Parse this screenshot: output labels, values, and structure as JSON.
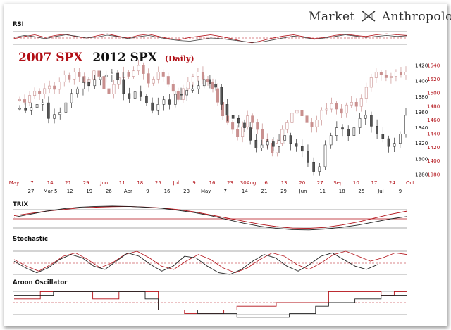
{
  "brand": {
    "word1": "Market",
    "word2": "Anthropology"
  },
  "title": {
    "line1": "2007 SPX",
    "line2": "2012 SPX",
    "suffix": "(Daily)"
  },
  "panels": {
    "rsi": "RSI",
    "trix": "TRIX",
    "stochastic": "Stochastic",
    "aroon": "Aroon Oscillator"
  },
  "colors": {
    "series_2007": "#b20f16",
    "series_2012": "#111111",
    "candle_2007": "#c9908f",
    "candle_2012_down": "#555555"
  },
  "chart_data": {
    "type": "line",
    "title": "2007 SPX  2012 SPX (Daily)",
    "axes": {
      "x_top_labels_2007": [
        "May",
        "7",
        "14",
        "21",
        "29",
        "Jun",
        "11",
        "18",
        "25",
        "Jul",
        "9",
        "16",
        "23",
        "30Aug",
        "6",
        "13",
        "20",
        "27",
        "Sep",
        "10",
        "17",
        "24",
        "Oct"
      ],
      "x_bottom_labels_2012": [
        "27",
        "Mar 5",
        "12",
        "19",
        "26",
        "Apr",
        "9",
        "16",
        "23",
        "May",
        "7",
        "14",
        "21",
        "29",
        "Jun",
        "11",
        "18",
        "25",
        "Jul",
        "9"
      ],
      "y_right_2012": [
        1280,
        1300,
        1320,
        1340,
        1360,
        1380,
        1400,
        1420
      ],
      "y_right_2007": [
        1380,
        1400,
        1420,
        1440,
        1460,
        1480,
        1500,
        1520,
        1540
      ],
      "ylim_2012": [
        1270,
        1425
      ],
      "ylim_2007": [
        1370,
        1545
      ]
    },
    "grid": false,
    "series": [
      {
        "name": "2007 SPX",
        "values": [
          1490,
          1486,
          1496,
          1502,
          1498,
          1506,
          1510,
          1505,
          1516,
          1526,
          1520,
          1530,
          1524,
          1514,
          1520,
          1532,
          1524,
          1506,
          1498,
          1512,
          1522,
          1530,
          1524,
          1532,
          1540,
          1528,
          1514,
          1520,
          1530,
          1524,
          1512,
          1502,
          1490,
          1506,
          1516,
          1524,
          1530,
          1520,
          1516,
          1506,
          1486,
          1466,
          1456,
          1446,
          1436,
          1450,
          1466,
          1456,
          1446,
          1432,
          1426,
          1412,
          1426,
          1446,
          1456,
          1470,
          1474,
          1466,
          1456,
          1450,
          1460,
          1474,
          1476,
          1484,
          1476,
          1470,
          1482,
          1486,
          1480,
          1492,
          1508,
          1522,
          1530,
          1526,
          1522,
          1524,
          1530,
          1526,
          1530
        ]
      },
      {
        "name": "2012 SPX",
        "values": [
          1365,
          1362,
          1366,
          1370,
          1372,
          1352,
          1357,
          1360,
          1372,
          1384,
          1390,
          1398,
          1394,
          1402,
          1405,
          1408,
          1410,
          1402,
          1384,
          1378,
          1386,
          1380,
          1372,
          1362,
          1370,
          1376,
          1370,
          1383,
          1382,
          1388,
          1390,
          1394,
          1402,
          1396,
          1392,
          1370,
          1356,
          1352,
          1346,
          1340,
          1324,
          1314,
          1318,
          1322,
          1316,
          1324,
          1330,
          1320,
          1316,
          1310,
          1296,
          1284,
          1290,
          1318,
          1330,
          1340,
          1338,
          1330,
          1340,
          1352,
          1356,
          1342,
          1332,
          1326,
          1316,
          1320,
          1332,
          1356
        ]
      }
    ],
    "indicators": {
      "rsi": {
        "series": [
          {
            "name": "2007 SPX",
            "values": [
              48,
              55,
              60,
              52,
              58,
              62,
              54,
              50,
              57,
              63,
              56,
              50,
              58,
              62,
              55,
              48,
              45,
              52,
              56,
              60,
              55,
              48,
              40,
              35,
              42,
              50,
              56,
              60,
              54,
              48,
              52,
              58,
              62,
              58,
              55,
              60,
              63,
              60,
              58
            ]
          },
          {
            "name": "2012 SPX",
            "values": [
              52,
              58,
              54,
              48,
              55,
              60,
              56,
              50,
              53,
              59,
              55,
              48,
              54,
              58,
              52,
              46,
              42,
              40,
              45,
              50,
              48,
              44,
              40,
              36,
              38,
              44,
              50,
              56,
              52,
              46,
              50,
              55,
              60,
              56,
              52,
              55,
              58,
              55,
              57
            ]
          }
        ]
      },
      "trix": {
        "series": [
          {
            "name": "2007 SPX",
            "values": [
              0.2,
              0.35,
              0.5,
              0.6,
              0.7,
              0.75,
              0.78,
              0.8,
              0.76,
              0.7,
              0.6,
              0.45,
              0.25,
              0.05,
              -0.15,
              -0.35,
              -0.5,
              -0.6,
              -0.62,
              -0.55,
              -0.4,
              -0.2,
              0.05,
              0.3,
              0.5
            ]
          },
          {
            "name": "2012 SPX",
            "values": [
              0.1,
              0.3,
              0.5,
              0.65,
              0.75,
              0.8,
              0.82,
              0.8,
              0.75,
              0.68,
              0.55,
              0.4,
              0.2,
              -0.05,
              -0.28,
              -0.48,
              -0.62,
              -0.7,
              -0.72,
              -0.66,
              -0.55,
              -0.4,
              -0.2,
              0.0,
              0.15
            ]
          }
        ]
      },
      "stochastic": {
        "series": [
          {
            "name": "2007 SPX",
            "values": [
              60,
              40,
              25,
              45,
              70,
              80,
              60,
              35,
              50,
              75,
              85,
              65,
              40,
              30,
              55,
              75,
              60,
              35,
              20,
              35,
              60,
              80,
              70,
              45,
              30,
              50,
              75,
              85,
              70,
              55,
              65,
              80,
              75
            ]
          },
          {
            "name": "2012 SPX",
            "values": [
              55,
              35,
              20,
              35,
              60,
              75,
              65,
              40,
              30,
              55,
              80,
              70,
              45,
              25,
              40,
              70,
              65,
              40,
              20,
              15,
              30,
              55,
              75,
              65,
              40,
              25,
              45,
              70,
              80,
              60,
              40,
              30,
              45
            ]
          }
        ]
      },
      "aroon": {
        "series": [
          {
            "name": "2007 SPX",
            "values": [
              20,
              20,
              60,
              60,
              60,
              60,
              20,
              20,
              60,
              60,
              60,
              -40,
              -40,
              -60,
              -60,
              -60,
              -40,
              -20,
              -20,
              -20,
              0,
              0,
              0,
              0,
              60,
              60,
              60,
              60,
              40,
              60
            ]
          },
          {
            "name": "2012 SPX",
            "values": [
              40,
              40,
              40,
              60,
              60,
              60,
              60,
              60,
              60,
              60,
              20,
              -40,
              -40,
              -40,
              -60,
              -60,
              -60,
              -80,
              -80,
              -80,
              -80,
              -60,
              -60,
              -20,
              0,
              0,
              20,
              20,
              40,
              40
            ]
          }
        ]
      }
    }
  }
}
